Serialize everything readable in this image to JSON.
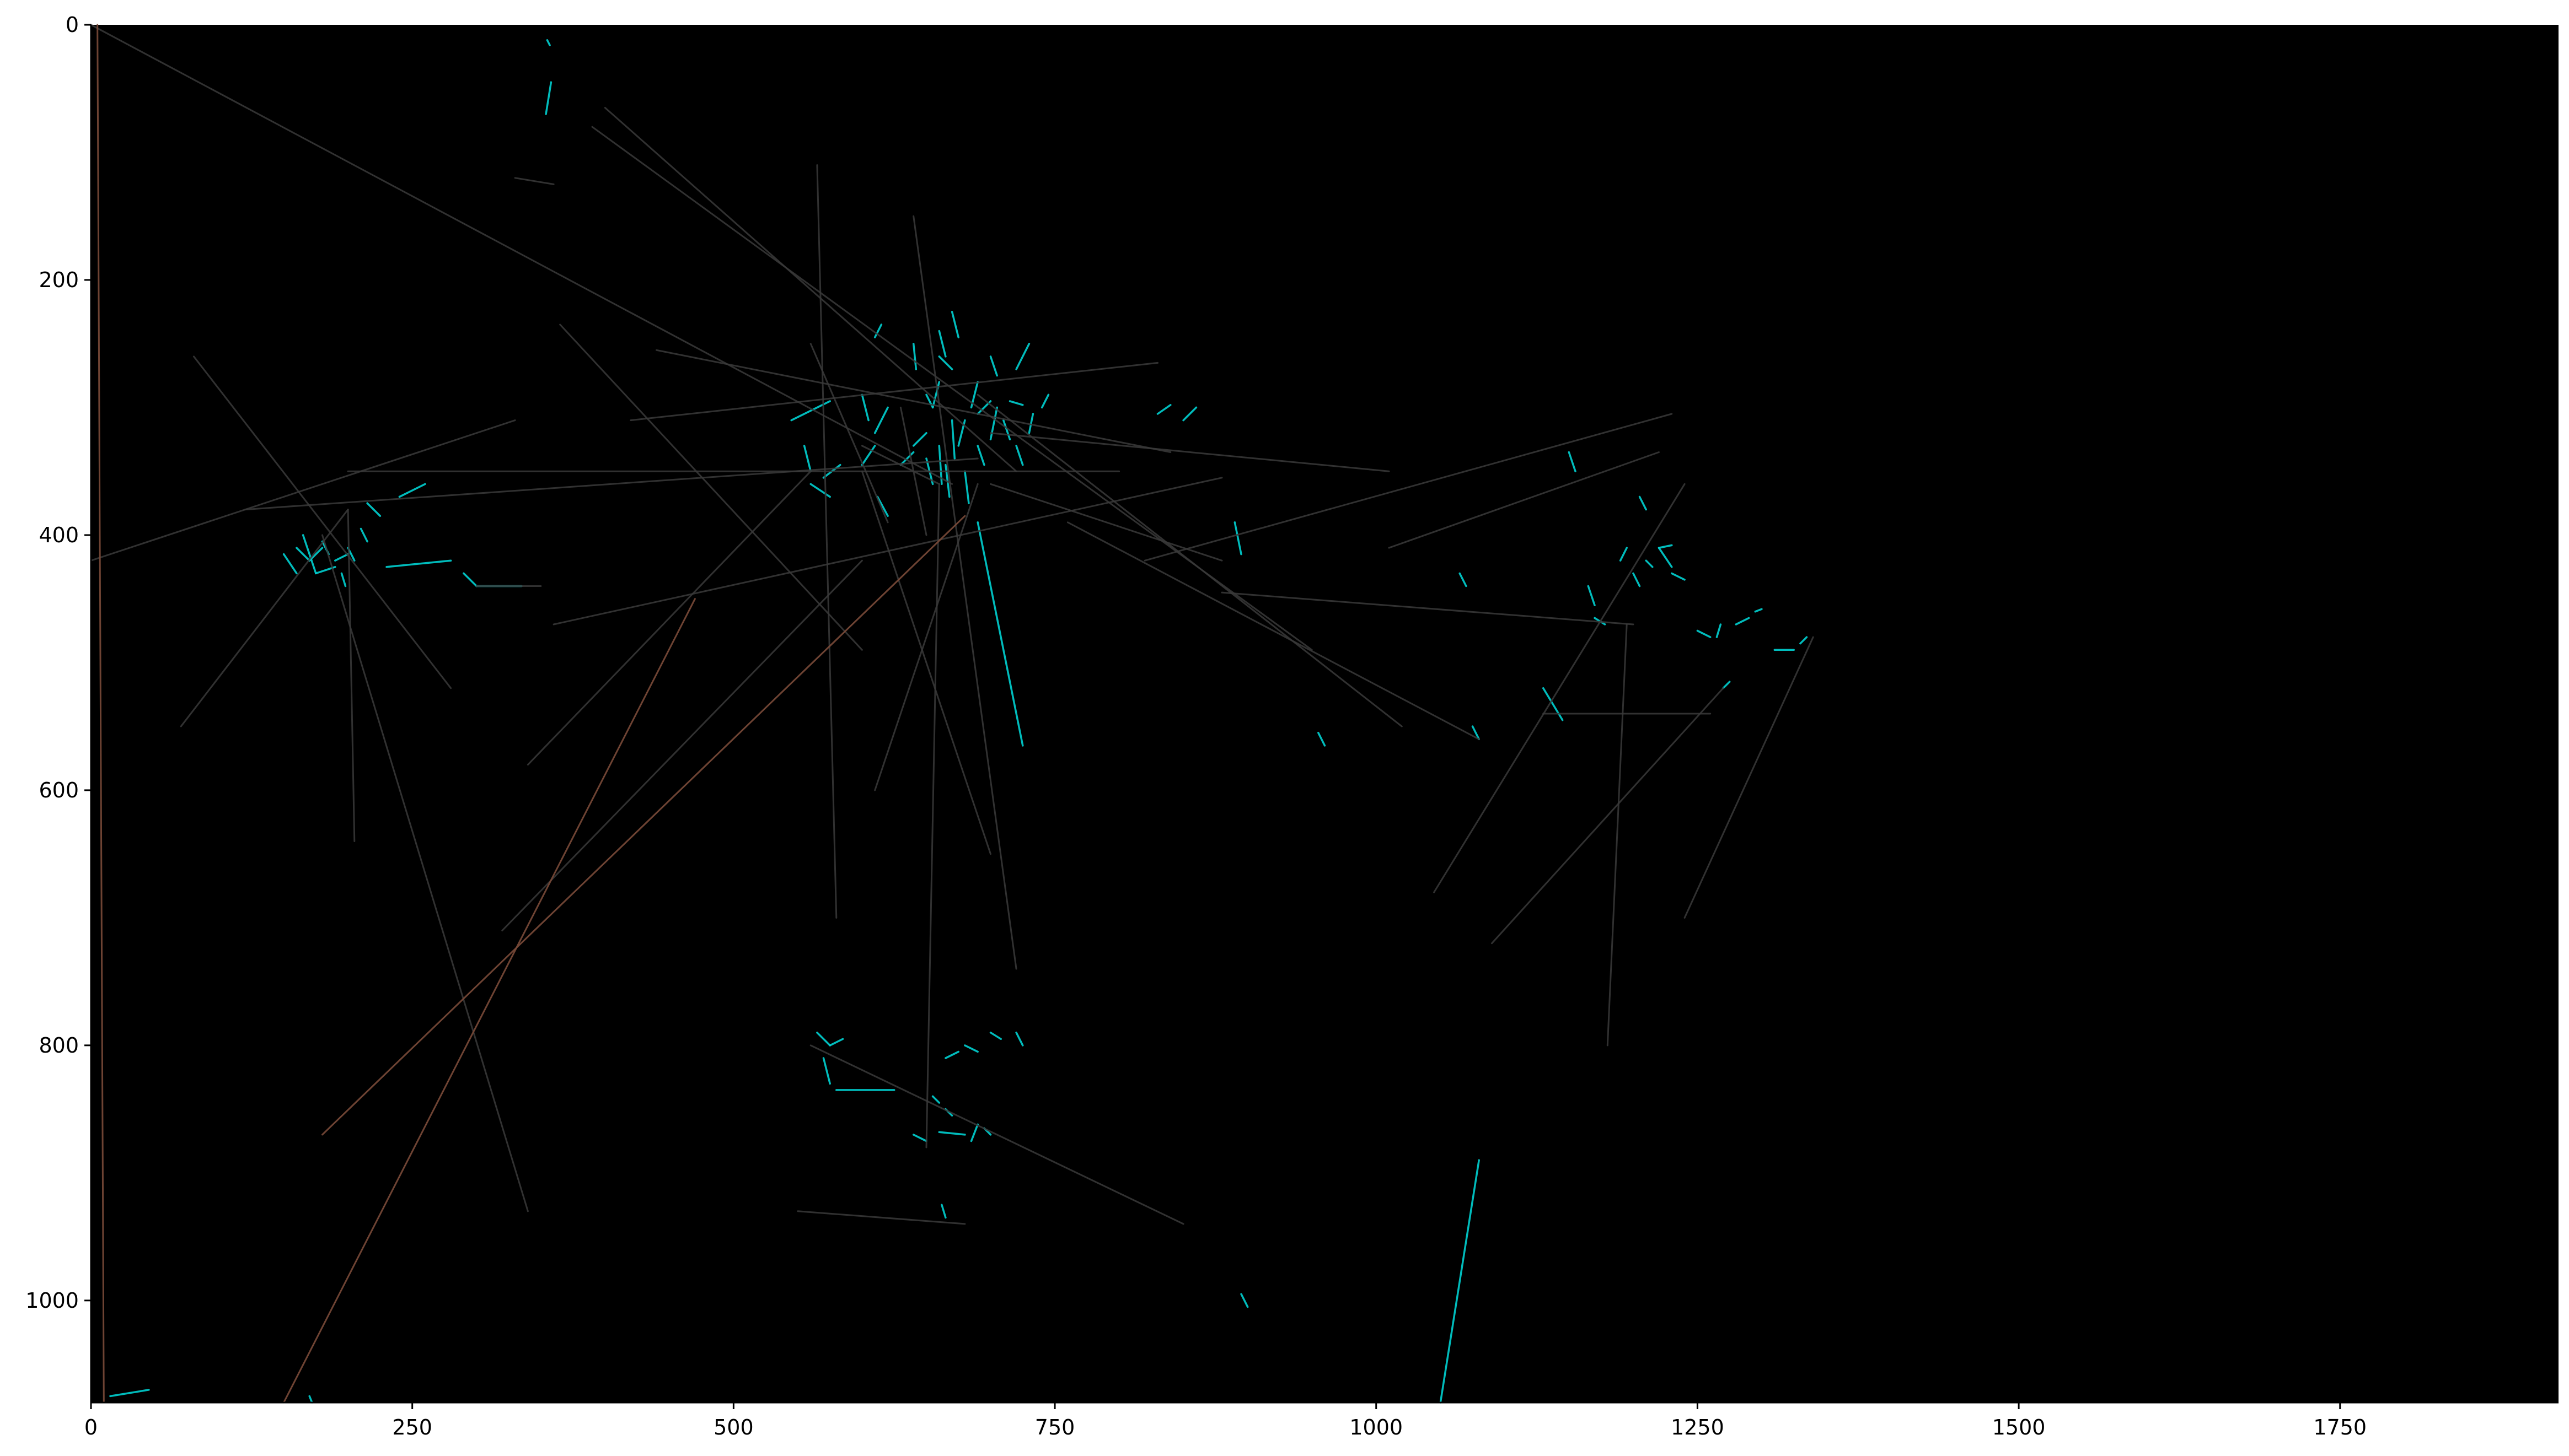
{
  "chart_data": {
    "type": "line",
    "title": "",
    "xlabel": "",
    "ylabel": "",
    "xlim": [
      0,
      1920
    ],
    "ylim": [
      1080,
      0
    ],
    "y_inverted": true,
    "grid": false,
    "legend": "none",
    "background_color": "#000000",
    "x_ticks": [
      0,
      250,
      500,
      750,
      1000,
      1250,
      1500,
      1750
    ],
    "x_tick_labels": [
      "0",
      "250",
      "500",
      "750",
      "1000",
      "1250",
      "1500",
      "1750"
    ],
    "y_ticks": [
      0,
      200,
      400,
      600,
      800,
      1000
    ],
    "y_tick_labels": [
      "0",
      "200",
      "400",
      "600",
      "800",
      "1000"
    ],
    "series": [
      {
        "color": "#00d0d0",
        "opacity": 0.9,
        "segments": [
          [
            355,
            12,
            357,
            16
          ],
          [
            358,
            45,
            354,
            70
          ],
          [
            545,
            310,
            575,
            295
          ],
          [
            555,
            330,
            560,
            350
          ],
          [
            570,
            355,
            583,
            345
          ],
          [
            600,
            345,
            610,
            330
          ],
          [
            610,
            320,
            620,
            300
          ],
          [
            630,
            345,
            640,
            335
          ],
          [
            640,
            330,
            650,
            320
          ],
          [
            650,
            340,
            655,
            360
          ],
          [
            655,
            300,
            660,
            280
          ],
          [
            660,
            330,
            662,
            360
          ],
          [
            665,
            345,
            668,
            370
          ],
          [
            670,
            310,
            672,
            340
          ],
          [
            675,
            330,
            680,
            310
          ],
          [
            680,
            350,
            683,
            375
          ],
          [
            685,
            300,
            690,
            280
          ],
          [
            690,
            330,
            695,
            345
          ],
          [
            700,
            325,
            705,
            300
          ],
          [
            710,
            310,
            715,
            325
          ],
          [
            720,
            330,
            725,
            345
          ],
          [
            730,
            320,
            733,
            305
          ],
          [
            640,
            250,
            642,
            270
          ],
          [
            660,
            240,
            665,
            260
          ],
          [
            670,
            225,
            675,
            245
          ],
          [
            650,
            290,
            655,
            300
          ],
          [
            660,
            260,
            670,
            270
          ],
          [
            690,
            390,
            725,
            565
          ],
          [
            700,
            260,
            705,
            275
          ],
          [
            720,
            270,
            730,
            250
          ],
          [
            690,
            305,
            700,
            295
          ],
          [
            715,
            295,
            725,
            298
          ],
          [
            740,
            300,
            745,
            290
          ],
          [
            612,
            370,
            620,
            385
          ],
          [
            600,
            290,
            605,
            310
          ],
          [
            560,
            360,
            575,
            370
          ],
          [
            610,
            245,
            615,
            235
          ],
          [
            160,
            410,
            170,
            420
          ],
          [
            170,
            420,
            180,
            410
          ],
          [
            175,
            430,
            190,
            425
          ],
          [
            180,
            405,
            185,
            415
          ],
          [
            190,
            420,
            200,
            415
          ],
          [
            195,
            430,
            198,
            440
          ],
          [
            200,
            410,
            205,
            420
          ],
          [
            210,
            395,
            215,
            405
          ],
          [
            150,
            415,
            160,
            430
          ],
          [
            165,
            400,
            175,
            430
          ],
          [
            230,
            425,
            280,
            420
          ],
          [
            290,
            430,
            300,
            440
          ],
          [
            300,
            440,
            335,
            440
          ],
          [
            240,
            370,
            260,
            360
          ],
          [
            215,
            375,
            225,
            385
          ],
          [
            565,
            790,
            575,
            800
          ],
          [
            570,
            810,
            575,
            830
          ],
          [
            575,
            800,
            585,
            795
          ],
          [
            580,
            835,
            625,
            835
          ],
          [
            665,
            810,
            675,
            805
          ],
          [
            680,
            800,
            690,
            805
          ],
          [
            700,
            790,
            708,
            795
          ],
          [
            720,
            790,
            725,
            800
          ],
          [
            655,
            840,
            660,
            845
          ],
          [
            665,
            850,
            670,
            855
          ],
          [
            640,
            870,
            650,
            875
          ],
          [
            660,
            868,
            680,
            870
          ],
          [
            685,
            875,
            690,
            862
          ],
          [
            695,
            865,
            700,
            870
          ],
          [
            662,
            925,
            665,
            935
          ],
          [
            1190,
            420,
            1195,
            410
          ],
          [
            1200,
            430,
            1205,
            440
          ],
          [
            1210,
            420,
            1215,
            425
          ],
          [
            1220,
            410,
            1230,
            408
          ],
          [
            1230,
            430,
            1240,
            435
          ],
          [
            1165,
            440,
            1170,
            455
          ],
          [
            1170,
            465,
            1178,
            470
          ],
          [
            1150,
            335,
            1155,
            350
          ],
          [
            1130,
            520,
            1145,
            545
          ],
          [
            1230,
            425,
            1220,
            410
          ],
          [
            1250,
            475,
            1260,
            480
          ],
          [
            1265,
            480,
            1268,
            470
          ],
          [
            1280,
            470,
            1290,
            465
          ],
          [
            1295,
            460,
            1300,
            458
          ],
          [
            1310,
            490,
            1325,
            490
          ],
          [
            1330,
            485,
            1335,
            480
          ],
          [
            1270,
            520,
            1275,
            515
          ],
          [
            1205,
            370,
            1210,
            380
          ],
          [
            1065,
            430,
            1070,
            440
          ],
          [
            1075,
            550,
            1080,
            560
          ],
          [
            955,
            555,
            960,
            565
          ],
          [
            890,
            390,
            895,
            415
          ],
          [
            895,
            995,
            900,
            1005
          ],
          [
            1050,
            1080,
            1080,
            890
          ],
          [
            850,
            310,
            860,
            300
          ],
          [
            830,
            305,
            840,
            298
          ],
          [
            15,
            1075,
            45,
            1070
          ],
          [
            170,
            1075,
            172,
            1080
          ]
        ]
      },
      {
        "color": "#3a3a3a",
        "opacity": 0.85,
        "segments": [
          [
            0,
            0,
            670,
            360
          ],
          [
            400,
            65,
            720,
            350
          ],
          [
            390,
            80,
            950,
            490
          ],
          [
            365,
            235,
            600,
            490
          ],
          [
            440,
            255,
            840,
            335
          ],
          [
            80,
            260,
            280,
            520
          ],
          [
            70,
            550,
            200,
            380
          ],
          [
            120,
            380,
            690,
            340
          ],
          [
            0,
            420,
            330,
            310
          ],
          [
            200,
            350,
            800,
            350
          ],
          [
            360,
            470,
            880,
            355
          ],
          [
            420,
            310,
            830,
            265
          ],
          [
            690,
            290,
            1020,
            550
          ],
          [
            760,
            390,
            1080,
            560
          ],
          [
            700,
            320,
            1010,
            350
          ],
          [
            880,
            445,
            1200,
            470
          ],
          [
            820,
            420,
            1230,
            305
          ],
          [
            1010,
            410,
            1220,
            335
          ],
          [
            1045,
            680,
            1240,
            360
          ],
          [
            1090,
            720,
            1270,
            520
          ],
          [
            1180,
            800,
            1195,
            470
          ],
          [
            1240,
            700,
            1340,
            480
          ],
          [
            1130,
            540,
            1260,
            540
          ],
          [
            565,
            110,
            580,
            700
          ],
          [
            640,
            150,
            720,
            740
          ],
          [
            610,
            600,
            690,
            360
          ],
          [
            550,
            930,
            680,
            940
          ],
          [
            560,
            800,
            850,
            940
          ],
          [
            650,
            880,
            660,
            360
          ],
          [
            320,
            710,
            600,
            420
          ],
          [
            180,
            400,
            340,
            930
          ],
          [
            200,
            380,
            205,
            640
          ],
          [
            340,
            580,
            560,
            350
          ],
          [
            600,
            350,
            700,
            650
          ],
          [
            300,
            440,
            350,
            440
          ],
          [
            560,
            250,
            620,
            390
          ],
          [
            330,
            120,
            360,
            125
          ],
          [
            650,
            400,
            630,
            300
          ],
          [
            700,
            360,
            880,
            420
          ],
          [
            600,
            330,
            660,
            360
          ]
        ]
      },
      {
        "color": "#7a4a38",
        "opacity": 0.9,
        "segments": [
          [
            5,
            0,
            10,
            1080
          ],
          [
            150,
            1080,
            470,
            450
          ],
          [
            180,
            870,
            680,
            385
          ]
        ]
      }
    ]
  }
}
